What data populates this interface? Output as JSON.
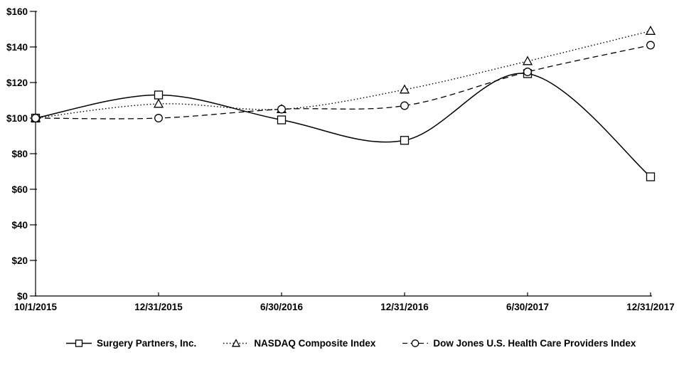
{
  "chart_data": {
    "type": "line",
    "title": "",
    "x_labels": [
      "10/1/2015",
      "12/31/2015",
      "6/30/2016",
      "12/31/2016",
      "6/30/2017",
      "12/31/2017"
    ],
    "series": [
      {
        "name": "Surgery Partners, Inc.",
        "line_style": "solid",
        "marker": "square",
        "values": [
          100,
          113,
          99,
          87.5,
          125,
          67
        ]
      },
      {
        "name": "NASDAQ Composite Index",
        "line_style": "dotted",
        "marker": "triangle",
        "values": [
          100,
          108,
          105,
          116,
          132,
          149
        ]
      },
      {
        "name": "Dow Jones U.S. Health Care Providers Index",
        "line_style": "dashed",
        "marker": "circle",
        "values": [
          100,
          100,
          105,
          107,
          126,
          141
        ]
      }
    ],
    "ylim": [
      0,
      160
    ],
    "y_ticks": [
      0,
      20,
      40,
      60,
      80,
      100,
      120,
      140,
      160
    ],
    "y_tick_labels": [
      "$0",
      "$20",
      "$40",
      "$60",
      "$80",
      "$100",
      "$120",
      "$140",
      "$160"
    ],
    "grid": false,
    "legend_position": "bottom",
    "colors": {
      "line": "#000000",
      "background": "#ffffff",
      "marker_fill": "#ffffff"
    }
  }
}
